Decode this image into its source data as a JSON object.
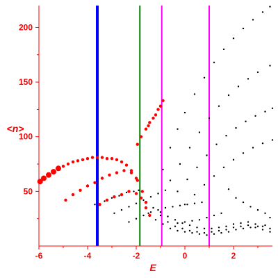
{
  "chart_data": {
    "type": "scatter",
    "title": "",
    "xlabel": "E",
    "ylabel": "<n>",
    "xlim": [
      -6,
      3.6
    ],
    "ylim": [
      0,
      220
    ],
    "xticks": [
      -6,
      -4,
      -2,
      0,
      2
    ],
    "xtick_labels": [
      "-6",
      "-4",
      "-2",
      "0",
      "2"
    ],
    "yticks": [
      50,
      100,
      150,
      200
    ],
    "ytick_labels": [
      "50",
      "100",
      "150",
      "200"
    ],
    "grid": false,
    "legend": "none",
    "colors": {
      "axes": "#ff0000",
      "ticks_text": "#ff0000",
      "black_points": "#000000",
      "red_points": "#ff0000",
      "blue_line": "#0000ff",
      "green_line": "#008000",
      "magenta_line": "#ff00ff"
    },
    "vertical_lines": [
      {
        "x": -3.6,
        "color": "#0000ff",
        "width": "thick"
      },
      {
        "x": -1.85,
        "color": "#008000",
        "width": "normal"
      },
      {
        "x": -0.95,
        "color": "#ff00ff",
        "width": "normal"
      },
      {
        "x": 1.0,
        "color": "#ff00ff",
        "width": "normal"
      }
    ],
    "series": [
      {
        "color": "#ff0000",
        "points": [
          [
            -5.95,
            59
          ],
          [
            -5.8,
            62
          ],
          [
            -5.6,
            65
          ],
          [
            -5.4,
            68
          ],
          [
            -5.2,
            71
          ],
          [
            -5.0,
            73
          ],
          [
            -4.8,
            75
          ],
          [
            -4.6,
            77
          ],
          [
            -4.4,
            78
          ],
          [
            -4.2,
            79
          ],
          [
            -4.0,
            80
          ],
          [
            -3.8,
            81
          ],
          [
            -3.6,
            81
          ],
          [
            -3.4,
            81
          ],
          [
            -3.2,
            80
          ],
          [
            -3.0,
            80
          ],
          [
            -2.8,
            79
          ],
          [
            -2.6,
            77
          ],
          [
            -2.4,
            74
          ],
          [
            -2.2,
            69
          ],
          [
            -2.0,
            62
          ]
        ]
      },
      {
        "color": "#ff0000",
        "points": [
          [
            -4.9,
            42
          ],
          [
            -4.6,
            47
          ],
          [
            -4.3,
            51
          ],
          [
            -4.0,
            55
          ],
          [
            -3.7,
            58
          ],
          [
            -3.4,
            62
          ],
          [
            -3.1,
            65
          ],
          [
            -2.8,
            67
          ],
          [
            -2.5,
            69
          ],
          [
            -2.2,
            67
          ],
          [
            -1.95,
            60
          ],
          [
            -1.75,
            50
          ],
          [
            -1.6,
            35
          ],
          [
            -1.45,
            28
          ]
        ]
      },
      {
        "color": "#ff0000",
        "points": [
          [
            -3.5,
            38
          ],
          [
            -3.2,
            42
          ],
          [
            -2.9,
            45
          ],
          [
            -2.6,
            47
          ],
          [
            -2.3,
            50
          ],
          [
            -2.0,
            48
          ],
          [
            -1.8,
            44
          ],
          [
            -1.6,
            40
          ]
        ]
      },
      {
        "color": "#ff0000",
        "points": [
          [
            -1.95,
            93
          ],
          [
            -1.8,
            100
          ],
          [
            -1.6,
            107
          ],
          [
            -1.5,
            110
          ],
          [
            -1.45,
            113
          ],
          [
            -1.3,
            117
          ],
          [
            -1.2,
            120
          ],
          [
            -1.1,
            125
          ],
          [
            -1.0,
            128
          ],
          [
            -0.9,
            133
          ]
        ]
      },
      {
        "color": "#000000",
        "points": [
          [
            -0.9,
            70
          ],
          [
            -0.6,
            90
          ],
          [
            -0.3,
            107
          ],
          [
            0.0,
            122
          ],
          [
            0.4,
            139
          ],
          [
            0.8,
            154
          ],
          [
            1.2,
            168
          ],
          [
            1.6,
            180
          ],
          [
            2.0,
            190
          ],
          [
            2.4,
            199
          ],
          [
            2.8,
            207
          ],
          [
            3.2,
            214
          ],
          [
            3.5,
            219
          ]
        ]
      },
      {
        "color": "#000000",
        "points": [
          [
            -0.6,
            60
          ],
          [
            -0.2,
            75
          ],
          [
            0.2,
            90
          ],
          [
            0.6,
            104
          ],
          [
            1.0,
            117
          ],
          [
            1.4,
            128
          ],
          [
            1.8,
            138
          ],
          [
            2.2,
            146
          ],
          [
            2.6,
            153
          ],
          [
            3.0,
            159
          ],
          [
            3.5,
            165
          ]
        ]
      },
      {
        "color": "#000000",
        "points": [
          [
            -0.3,
            50
          ],
          [
            0.1,
            61
          ],
          [
            0.5,
            72
          ],
          [
            0.9,
            83
          ],
          [
            1.3,
            93
          ],
          [
            1.7,
            101
          ],
          [
            2.1,
            108
          ],
          [
            2.5,
            114
          ],
          [
            2.9,
            119
          ],
          [
            3.3,
            123
          ],
          [
            3.6,
            126
          ]
        ]
      },
      {
        "color": "#000000",
        "points": [
          [
            0.0,
            38
          ],
          [
            0.4,
            47
          ],
          [
            0.8,
            56
          ],
          [
            1.2,
            64
          ],
          [
            1.6,
            72
          ],
          [
            2.0,
            79
          ],
          [
            2.4,
            85
          ],
          [
            2.8,
            90
          ],
          [
            3.2,
            94
          ],
          [
            3.6,
            97
          ]
        ]
      },
      {
        "color": "#000000",
        "points": [
          [
            -3.7,
            38
          ],
          [
            -3.3,
            41
          ],
          [
            -3.0,
            44
          ],
          [
            -2.7,
            46
          ],
          [
            -2.4,
            49
          ],
          [
            -2.1,
            50
          ],
          [
            -1.9,
            51
          ]
        ]
      },
      {
        "color": "#000000",
        "points": [
          [
            -2.9,
            30
          ],
          [
            -2.6,
            33
          ],
          [
            -2.3,
            36
          ],
          [
            -2.0,
            39
          ],
          [
            -1.7,
            42
          ],
          [
            -1.4,
            45
          ],
          [
            -1.1,
            48
          ],
          [
            -0.8,
            51
          ]
        ]
      },
      {
        "color": "#000000",
        "points": [
          [
            -2.3,
            22
          ],
          [
            -2.0,
            25
          ],
          [
            -1.7,
            28
          ],
          [
            -1.4,
            31
          ],
          [
            -1.1,
            33
          ],
          [
            -0.8,
            35
          ],
          [
            -0.5,
            36
          ],
          [
            -0.2,
            37
          ],
          [
            0.1,
            38
          ],
          [
            0.4,
            39
          ],
          [
            0.7,
            40
          ]
        ]
      },
      {
        "color": "#000000",
        "points": [
          [
            -1.5,
            30
          ],
          [
            -1.2,
            24
          ],
          [
            -0.9,
            20
          ],
          [
            -0.6,
            16
          ],
          [
            -0.3,
            14
          ],
          [
            0.0,
            13
          ],
          [
            0.3,
            12
          ],
          [
            0.6,
            11
          ],
          [
            0.9,
            10
          ],
          [
            1.2,
            11
          ],
          [
            1.5,
            12
          ],
          [
            1.8,
            13
          ],
          [
            2.1,
            15
          ],
          [
            2.4,
            16
          ],
          [
            2.7,
            17
          ],
          [
            3.0,
            18
          ],
          [
            3.3,
            19
          ]
        ]
      },
      {
        "color": "#000000",
        "points": [
          [
            -1.3,
            35
          ],
          [
            -1.0,
            31
          ],
          [
            -0.7,
            27
          ],
          [
            -0.4,
            24
          ],
          [
            -0.1,
            21
          ],
          [
            0.2,
            19
          ],
          [
            0.5,
            17
          ],
          [
            0.8,
            16
          ],
          [
            1.1,
            16
          ],
          [
            1.4,
            17
          ],
          [
            1.7,
            18
          ],
          [
            2.0,
            20
          ],
          [
            2.3,
            21
          ],
          [
            2.6,
            22
          ],
          [
            2.9,
            20
          ],
          [
            3.2,
            18
          ],
          [
            3.5,
            16
          ]
        ]
      },
      {
        "color": "#000000",
        "points": [
          [
            -1.0,
            28
          ],
          [
            -0.7,
            22
          ],
          [
            -0.4,
            18
          ],
          [
            -0.1,
            16
          ],
          [
            0.2,
            14
          ],
          [
            0.5,
            13
          ],
          [
            0.8,
            12
          ],
          [
            1.1,
            13
          ],
          [
            1.4,
            14
          ],
          [
            1.7,
            15
          ],
          [
            2.0,
            17
          ],
          [
            2.3,
            18
          ],
          [
            2.6,
            19
          ],
          [
            2.9,
            17
          ],
          [
            3.2,
            15
          ],
          [
            3.5,
            13
          ]
        ]
      },
      {
        "color": "#000000",
        "points": [
          [
            1.8,
            52
          ],
          [
            2.1,
            44
          ],
          [
            2.4,
            40
          ],
          [
            2.7,
            36
          ],
          [
            3.0,
            33
          ],
          [
            3.3,
            30
          ],
          [
            3.5,
            26
          ],
          [
            1.5,
            30
          ],
          [
            1.2,
            28
          ],
          [
            0.9,
            26
          ],
          [
            0.6,
            24
          ],
          [
            0.3,
            23
          ],
          [
            0.0,
            22
          ],
          [
            -0.3,
            21
          ]
        ]
      }
    ]
  }
}
